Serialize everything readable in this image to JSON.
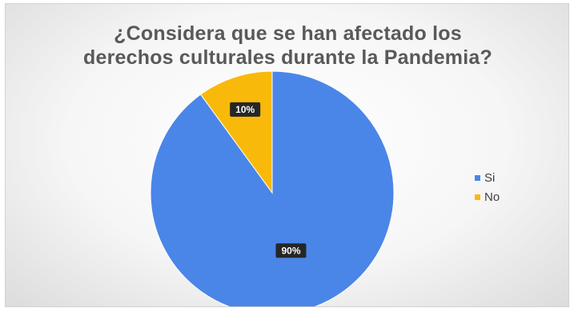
{
  "chart_data": {
    "type": "pie",
    "title_lines": [
      "¿Considera que se han afectado los",
      "derechos culturales durante la Pandemia?"
    ],
    "categories": [
      "Si",
      "No"
    ],
    "values": [
      90,
      10
    ],
    "data_labels": [
      "90%",
      "10%"
    ],
    "colors": [
      "#4a86e8",
      "#f9b90a"
    ],
    "start_angle_deg": 0,
    "legend": "right",
    "grid": false
  }
}
